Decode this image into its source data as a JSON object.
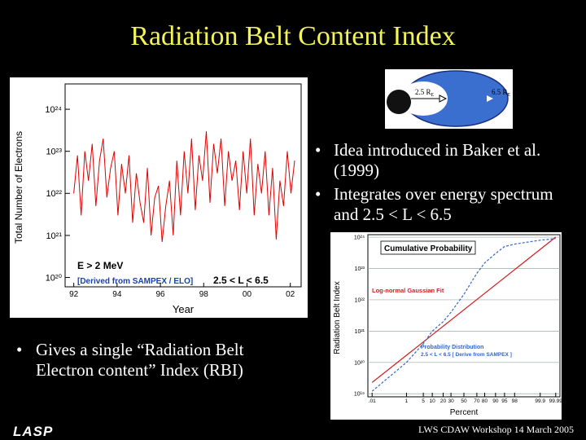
{
  "title": "Radiation Belt Content Index",
  "diagram": {
    "inner_label": "2.5 R",
    "inner_label_sub": "E",
    "outer_label": "6.5 R",
    "outer_label_sub": "E"
  },
  "bullets_right": [
    "Idea introduced in Baker et al. (1999)",
    "Integrates over energy spectrum and 2.5 < L < 6.5"
  ],
  "bullets_left": [
    "Gives a single “Radiation Belt Electron content” Index (RBI)"
  ],
  "footer": "LWS CDAW Workshop 14 March 2005",
  "logo": "LASP",
  "chart_data": [
    {
      "type": "line",
      "xlabel": "Year",
      "ylabel": "Total Number of Electrons",
      "yscale": "log",
      "xscale": "linear",
      "annotations": [
        "E > 2 MeV",
        "[Derived from SAMPEX / ELO]",
        "2.5 < L < 6.5"
      ],
      "xlim": [
        1991.6,
        2002.5
      ],
      "xticks": [
        {
          "value": 1992,
          "label": "92"
        },
        {
          "value": 1994,
          "label": "94"
        },
        {
          "value": 1996,
          "label": "96"
        },
        {
          "value": 1998,
          "label": "98"
        },
        {
          "value": 2000,
          "label": "00"
        },
        {
          "value": 2002,
          "label": "02"
        }
      ],
      "ylim": [
        6e+19,
        4e+24
      ],
      "yticks": [
        {
          "value": 1e+20,
          "label": "10²⁰"
        },
        {
          "value": 1e+21,
          "label": "10²¹"
        },
        {
          "value": 1e+22,
          "label": "10²²"
        },
        {
          "value": 1e+23,
          "label": "10²³"
        },
        {
          "value": 1e+24,
          "label": "10²⁴"
        }
      ],
      "grid": false,
      "series": [
        {
          "color": "#e00000",
          "x": [
            1992,
            1992.17,
            1992.34,
            1992.51,
            1992.68,
            1992.85,
            1993.02,
            1993.19,
            1993.36,
            1993.53,
            1993.7,
            1993.87,
            1994.04,
            1994.21,
            1994.38,
            1994.55,
            1994.72,
            1994.89,
            1995.06,
            1995.23,
            1995.4,
            1995.57,
            1995.74,
            1995.91,
            1996.08,
            1996.25,
            1996.42,
            1996.59,
            1996.76,
            1996.93,
            1997.1,
            1997.27,
            1997.44,
            1997.61,
            1997.78,
            1997.95,
            1998.12,
            1998.29,
            1998.46,
            1998.63,
            1998.8,
            1998.97,
            1999.14,
            1999.31,
            1999.48,
            1999.65,
            1999.82,
            1999.99,
            2000.16,
            2000.33,
            2000.5,
            2000.67,
            2000.84,
            2001.01,
            2001.18,
            2001.35,
            2001.52,
            2001.69,
            2001.86,
            2002.03,
            2002.2
          ],
          "values": [
            1e+22,
            8e+22,
            3e+21,
            1e+23,
            2e+22,
            1.5e+23,
            5e+21,
            6e+22,
            2e+23,
            8e+21,
            4e+22,
            1e+23,
            3e+21,
            5e+22,
            1e+22,
            8e+22,
            2e+21,
            3e+22,
            6e+21,
            2e+21,
            4e+22,
            1e+21,
            8e+21,
            1.5e+22,
            7e+20,
            5e+21,
            2e+22,
            1e+21,
            6e+22,
            3e+21,
            1e+23,
            1e+22,
            2e+23,
            4e+21,
            8e+22,
            2e+22,
            3e+23,
            6e+21,
            1.5e+23,
            3e+22,
            2e+23,
            5e+21,
            1e+23,
            2e+22,
            6e+22,
            4e+21,
            1e+23,
            1e+22,
            2e+23,
            3e+21,
            5e+22,
            1e+22,
            1e+23,
            3e+21,
            4e+22,
            8e+20,
            2e+22,
            5e+21,
            1e+23,
            1e+22,
            6e+22
          ]
        }
      ]
    },
    {
      "type": "line",
      "xlabel": "Percent",
      "ylabel": "Radiation Belt Index",
      "yscale": "log",
      "xscale": "probit",
      "annotations": [
        "Cumulative Probability",
        "Log-normal Gaussian Fit",
        "Probability Distribution",
        "2.5 < L < 6.5 [ Derive from SAMPEX ]"
      ],
      "xlim": [
        0.005,
        99.995
      ],
      "xticks": [
        {
          "value": 0.01,
          "label": ".01"
        },
        1,
        5,
        10,
        20,
        30,
        50,
        70,
        80,
        90,
        95,
        98,
        99.9,
        99.99
      ],
      "ylim": [
        8e+18,
        1.2e+24
      ],
      "yticks": [
        {
          "value": 1e+19,
          "label": "10¹⁹"
        },
        {
          "value": 1e+20,
          "label": "10²⁰"
        },
        {
          "value": 1e+21,
          "label": "10²¹"
        },
        {
          "value": 1e+22,
          "label": "10²²"
        },
        {
          "value": 1e+23,
          "label": "10²³"
        },
        {
          "value": 1e+24,
          "label": "10²⁴"
        }
      ],
      "grid": true,
      "series": [
        {
          "color": "#d02020",
          "x": [
            0.01,
            99.99
          ],
          "values": [
            2.3e+19,
            1e+24
          ]
        },
        {
          "color": "#3366cc",
          "dashed": true,
          "x": [
            0.01,
            1,
            5,
            10,
            20,
            30,
            50,
            70,
            80,
            90,
            95,
            98,
            99.9,
            99.99
          ],
          "values": [
            1.2e+19,
            1e+20,
            4e+20,
            1e+21,
            2e+21,
            4e+21,
            1.5e+22,
            7e+22,
            1.5e+23,
            3e+23,
            5e+23,
            6e+23,
            8e+23,
            9e+23
          ]
        }
      ]
    }
  ]
}
